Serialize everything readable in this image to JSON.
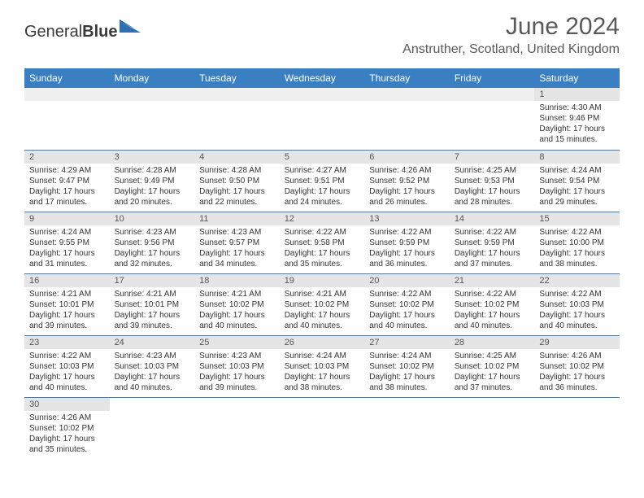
{
  "brand": {
    "part1": "General",
    "part2": "Blue"
  },
  "title": "June 2024",
  "location": "Anstruther, Scotland, United Kingdom",
  "colors": {
    "header_bg": "#3a7fc2",
    "header_fg": "#ffffff",
    "daynum_bg": "#e5e5e5",
    "border": "#3a7fc2",
    "text": "#333333",
    "title_text": "#5a5a5a"
  },
  "day_headers": [
    "Sunday",
    "Monday",
    "Tuesday",
    "Wednesday",
    "Thursday",
    "Friday",
    "Saturday"
  ],
  "weeks": [
    [
      null,
      null,
      null,
      null,
      null,
      null,
      {
        "n": "1",
        "sr": "4:30 AM",
        "ss": "9:46 PM",
        "dl": "17 hours and 15 minutes."
      }
    ],
    [
      {
        "n": "2",
        "sr": "4:29 AM",
        "ss": "9:47 PM",
        "dl": "17 hours and 17 minutes."
      },
      {
        "n": "3",
        "sr": "4:28 AM",
        "ss": "9:49 PM",
        "dl": "17 hours and 20 minutes."
      },
      {
        "n": "4",
        "sr": "4:28 AM",
        "ss": "9:50 PM",
        "dl": "17 hours and 22 minutes."
      },
      {
        "n": "5",
        "sr": "4:27 AM",
        "ss": "9:51 PM",
        "dl": "17 hours and 24 minutes."
      },
      {
        "n": "6",
        "sr": "4:26 AM",
        "ss": "9:52 PM",
        "dl": "17 hours and 26 minutes."
      },
      {
        "n": "7",
        "sr": "4:25 AM",
        "ss": "9:53 PM",
        "dl": "17 hours and 28 minutes."
      },
      {
        "n": "8",
        "sr": "4:24 AM",
        "ss": "9:54 PM",
        "dl": "17 hours and 29 minutes."
      }
    ],
    [
      {
        "n": "9",
        "sr": "4:24 AM",
        "ss": "9:55 PM",
        "dl": "17 hours and 31 minutes."
      },
      {
        "n": "10",
        "sr": "4:23 AM",
        "ss": "9:56 PM",
        "dl": "17 hours and 32 minutes."
      },
      {
        "n": "11",
        "sr": "4:23 AM",
        "ss": "9:57 PM",
        "dl": "17 hours and 34 minutes."
      },
      {
        "n": "12",
        "sr": "4:22 AM",
        "ss": "9:58 PM",
        "dl": "17 hours and 35 minutes."
      },
      {
        "n": "13",
        "sr": "4:22 AM",
        "ss": "9:59 PM",
        "dl": "17 hours and 36 minutes."
      },
      {
        "n": "14",
        "sr": "4:22 AM",
        "ss": "9:59 PM",
        "dl": "17 hours and 37 minutes."
      },
      {
        "n": "15",
        "sr": "4:22 AM",
        "ss": "10:00 PM",
        "dl": "17 hours and 38 minutes."
      }
    ],
    [
      {
        "n": "16",
        "sr": "4:21 AM",
        "ss": "10:01 PM",
        "dl": "17 hours and 39 minutes."
      },
      {
        "n": "17",
        "sr": "4:21 AM",
        "ss": "10:01 PM",
        "dl": "17 hours and 39 minutes."
      },
      {
        "n": "18",
        "sr": "4:21 AM",
        "ss": "10:02 PM",
        "dl": "17 hours and 40 minutes."
      },
      {
        "n": "19",
        "sr": "4:21 AM",
        "ss": "10:02 PM",
        "dl": "17 hours and 40 minutes."
      },
      {
        "n": "20",
        "sr": "4:22 AM",
        "ss": "10:02 PM",
        "dl": "17 hours and 40 minutes."
      },
      {
        "n": "21",
        "sr": "4:22 AM",
        "ss": "10:02 PM",
        "dl": "17 hours and 40 minutes."
      },
      {
        "n": "22",
        "sr": "4:22 AM",
        "ss": "10:03 PM",
        "dl": "17 hours and 40 minutes."
      }
    ],
    [
      {
        "n": "23",
        "sr": "4:22 AM",
        "ss": "10:03 PM",
        "dl": "17 hours and 40 minutes."
      },
      {
        "n": "24",
        "sr": "4:23 AM",
        "ss": "10:03 PM",
        "dl": "17 hours and 40 minutes."
      },
      {
        "n": "25",
        "sr": "4:23 AM",
        "ss": "10:03 PM",
        "dl": "17 hours and 39 minutes."
      },
      {
        "n": "26",
        "sr": "4:24 AM",
        "ss": "10:03 PM",
        "dl": "17 hours and 38 minutes."
      },
      {
        "n": "27",
        "sr": "4:24 AM",
        "ss": "10:02 PM",
        "dl": "17 hours and 38 minutes."
      },
      {
        "n": "28",
        "sr": "4:25 AM",
        "ss": "10:02 PM",
        "dl": "17 hours and 37 minutes."
      },
      {
        "n": "29",
        "sr": "4:26 AM",
        "ss": "10:02 PM",
        "dl": "17 hours and 36 minutes."
      }
    ],
    [
      {
        "n": "30",
        "sr": "4:26 AM",
        "ss": "10:02 PM",
        "dl": "17 hours and 35 minutes."
      },
      null,
      null,
      null,
      null,
      null,
      null
    ]
  ],
  "labels": {
    "sunrise": "Sunrise:",
    "sunset": "Sunset:",
    "daylight": "Daylight:"
  }
}
